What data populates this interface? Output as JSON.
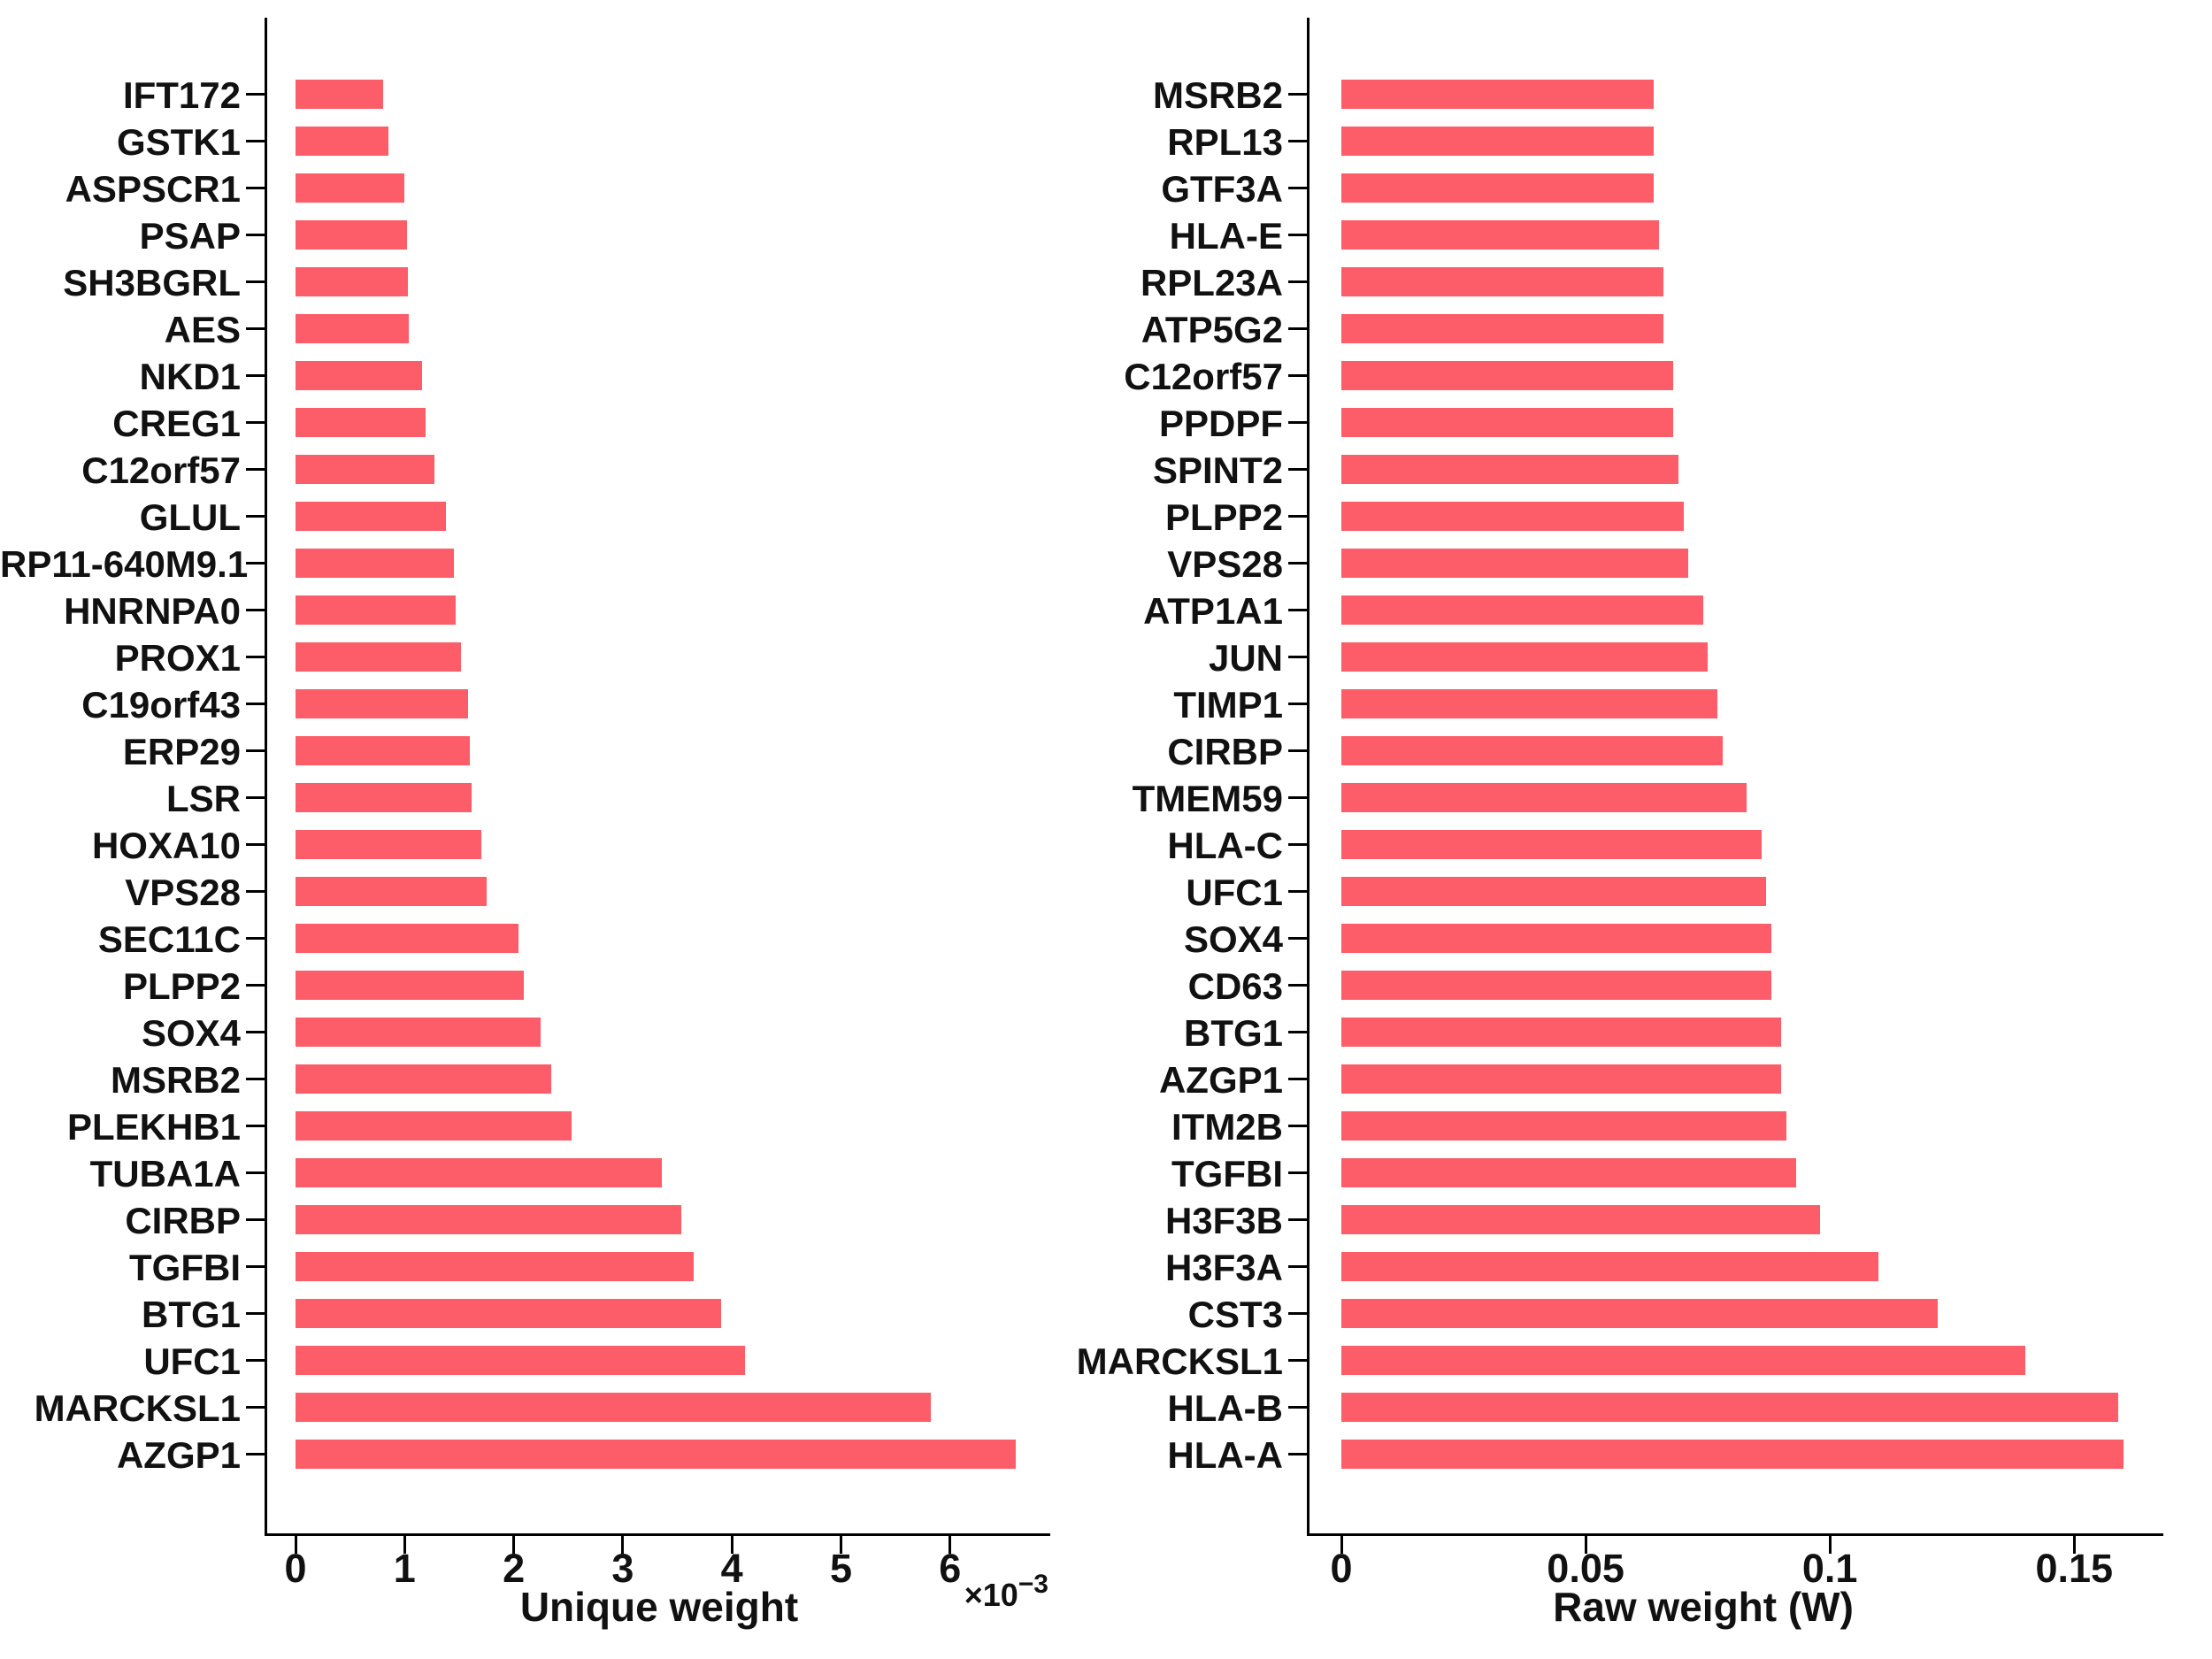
{
  "figure": {
    "background": "#ffffff",
    "bar_color": "#fc5d68",
    "axis_color": "#000000",
    "text_color": "#111111"
  },
  "chart_data": [
    {
      "type": "bar",
      "orientation": "horizontal",
      "title": "",
      "xlabel": "Unique weight",
      "ylabel": "",
      "offset_prefix": "×10",
      "offset_exponent": "−3",
      "value_unit": "1e-3",
      "xlim": [
        0,
        7.2
      ],
      "grid": false,
      "legend": null,
      "xticks": [
        0,
        1,
        2,
        3,
        4,
        5,
        6
      ],
      "xtick_labels": [
        "0",
        "1",
        "2",
        "3",
        "4",
        "5",
        "6"
      ],
      "categories": [
        "IFT172",
        "GSTK1",
        "ASPSCR1",
        "PSAP",
        "SH3BGRL",
        "AES",
        "NKD1",
        "CREG1",
        "C12orf57",
        "GLUL",
        "RP11-640M9.1",
        "HNRNPA0",
        "PROX1",
        "C19orf43",
        "ERP29",
        "LSR",
        "HOXA10",
        "VPS28",
        "SEC11C",
        "PLPP2",
        "SOX4",
        "MSRB2",
        "PLEKHB1",
        "TUBA1A",
        "CIRBP",
        "TGFBI",
        "BTG1",
        "UFC1",
        "MARCKSL1",
        "AZGP1"
      ],
      "values": [
        0.8,
        0.85,
        1.0,
        1.02,
        1.03,
        1.04,
        1.16,
        1.19,
        1.27,
        1.38,
        1.45,
        1.47,
        1.52,
        1.58,
        1.6,
        1.61,
        1.7,
        1.75,
        2.04,
        2.09,
        2.25,
        2.34,
        2.53,
        3.36,
        3.54,
        3.65,
        3.9,
        4.12,
        5.82,
        6.6
      ]
    },
    {
      "type": "bar",
      "orientation": "horizontal",
      "title": "",
      "xlabel": "Raw weight (W)",
      "ylabel": "",
      "offset_prefix": "",
      "offset_exponent": "",
      "value_unit": "1",
      "xlim": [
        0,
        0.168
      ],
      "grid": false,
      "legend": null,
      "xticks": [
        0,
        0.05,
        0.1,
        0.15
      ],
      "xtick_labels": [
        "0",
        "0.05",
        "0.1",
        "0.15"
      ],
      "categories": [
        "MSRB2",
        "RPL13",
        "GTF3A",
        "HLA-E",
        "RPL23A",
        "ATP5G2",
        "C12orf57",
        "PPDPF",
        "SPINT2",
        "PLPP2",
        "VPS28",
        "ATP1A1",
        "JUN",
        "TIMP1",
        "CIRBP",
        "TMEM59",
        "HLA-C",
        "UFC1",
        "SOX4",
        "CD63",
        "BTG1",
        "AZGP1",
        "ITM2B",
        "TGFBI",
        "H3F3B",
        "H3F3A",
        "CST3",
        "MARCKSL1",
        "HLA-B",
        "HLA-A"
      ],
      "values": [
        0.064,
        0.064,
        0.064,
        0.065,
        0.066,
        0.066,
        0.068,
        0.068,
        0.069,
        0.07,
        0.071,
        0.074,
        0.075,
        0.077,
        0.078,
        0.083,
        0.086,
        0.087,
        0.088,
        0.088,
        0.09,
        0.09,
        0.091,
        0.093,
        0.098,
        0.11,
        0.122,
        0.14,
        0.159,
        0.16
      ]
    }
  ]
}
